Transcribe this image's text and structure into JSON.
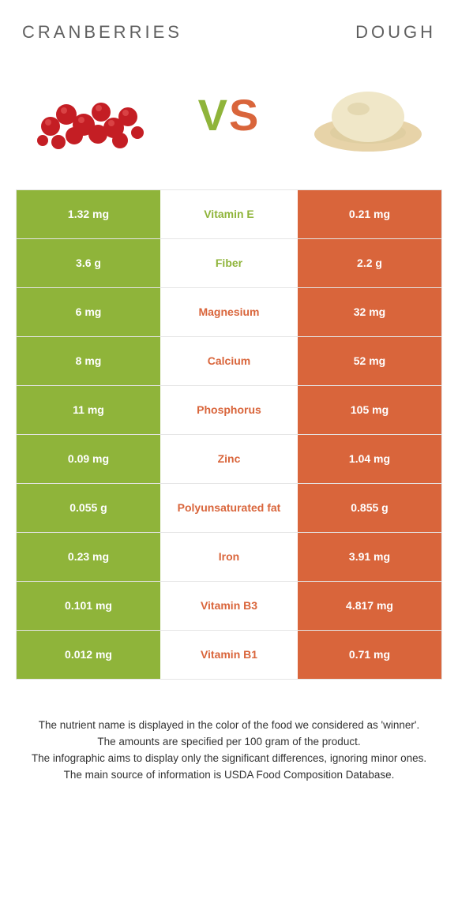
{
  "colors": {
    "green": "#8fb43a",
    "orange": "#d9653b",
    "white": "#ffffff"
  },
  "header": {
    "left": "CRANBERRIES",
    "right": "DOUGH"
  },
  "vs": {
    "v": "V",
    "s": "S"
  },
  "rows": [
    {
      "left": "1.32 mg",
      "name": "Vitamin E",
      "right": "0.21 mg",
      "winner": "left"
    },
    {
      "left": "3.6 g",
      "name": "Fiber",
      "right": "2.2 g",
      "winner": "left"
    },
    {
      "left": "6 mg",
      "name": "Magnesium",
      "right": "32 mg",
      "winner": "right"
    },
    {
      "left": "8 mg",
      "name": "Calcium",
      "right": "52 mg",
      "winner": "right"
    },
    {
      "left": "11 mg",
      "name": "Phosphorus",
      "right": "105 mg",
      "winner": "right"
    },
    {
      "left": "0.09 mg",
      "name": "Zinc",
      "right": "1.04 mg",
      "winner": "right"
    },
    {
      "left": "0.055 g",
      "name": "Polyunsaturated fat",
      "right": "0.855 g",
      "winner": "right"
    },
    {
      "left": "0.23 mg",
      "name": "Iron",
      "right": "3.91 mg",
      "winner": "right"
    },
    {
      "left": "0.101 mg",
      "name": "Vitamin B3",
      "right": "4.817 mg",
      "winner": "right"
    },
    {
      "left": "0.012 mg",
      "name": "Vitamin B1",
      "right": "0.71 mg",
      "winner": "right"
    }
  ],
  "footer": {
    "line1": "The nutrient name is displayed in the color of the food we considered as 'winner'.",
    "line2": "The amounts are specified per 100 gram of the product.",
    "line3": "The infographic aims to display only the significant differences, ignoring minor ones.",
    "line4": "The main source of information is USDA Food Composition Database."
  }
}
